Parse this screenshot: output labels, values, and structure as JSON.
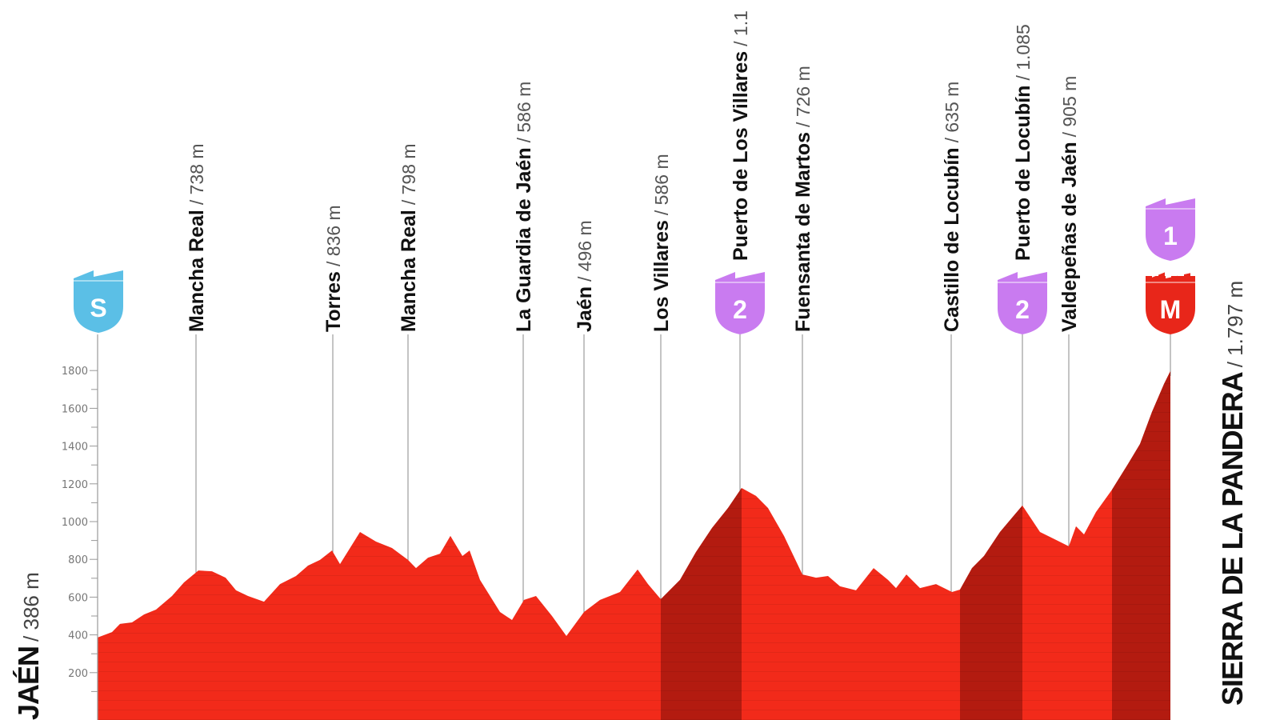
{
  "chart_data": {
    "type": "area",
    "title": "",
    "xlabel": "",
    "ylabel": "",
    "ylim": [
      0,
      1900
    ],
    "yticks": [
      200,
      400,
      600,
      800,
      1000,
      1200,
      1400,
      1600,
      1800
    ],
    "grid": false,
    "colors": {
      "profile": "#f22a1a",
      "climb": "#b31b10",
      "start_badge": "#5bbfe6",
      "climb_badge": "#c97bf0",
      "finish_badge": "#e8261a"
    },
    "profile_elevations_m": [
      386,
      415,
      458,
      466,
      508,
      534,
      606,
      678,
      741,
      737,
      703,
      636,
      606,
      576,
      669,
      712,
      767,
      797,
      847,
      775,
      945,
      894,
      860,
      797,
      754,
      809,
      830,
      924,
      818,
      847,
      691,
      521,
      479,
      585,
      606,
      500,
      394,
      521,
      585,
      627,
      746,
      669,
      589,
      691,
      839,
      966,
      1072,
      1178,
      1136,
      1072,
      924,
      720,
      703,
      712,
      657,
      636,
      754,
      691,
      648,
      720,
      648,
      669,
      627,
      640,
      754,
      818,
      945,
      1085,
      945,
      903,
      869,
      975,
      932,
      1051,
      1169,
      1305,
      1411,
      1581,
      1729,
      1797
    ],
    "climb_segments": [
      {
        "from_point": 42,
        "to_point": 47
      },
      {
        "from_point": 63,
        "to_point": 67
      },
      {
        "from_point": 74,
        "to_point": 79
      }
    ],
    "start": {
      "name": "JAÉN",
      "altitude": "386 m",
      "badge": "S"
    },
    "finish": {
      "name": "SIERRA DE LA PANDERA",
      "altitude": "1.797 m",
      "badges": [
        "1",
        "M"
      ]
    },
    "waypoints": [
      {
        "name": "Mancha Real",
        "altitude": "738 m"
      },
      {
        "name": "Torres",
        "altitude": "836 m"
      },
      {
        "name": "Mancha Real",
        "altitude": "798 m"
      },
      {
        "name": "La Guardia de Jaén",
        "altitude": "586 m"
      },
      {
        "name": "Jaén",
        "altitude": "496 m"
      },
      {
        "name": "Los Villares",
        "altitude": "586 m"
      },
      {
        "name": "Puerto de Los Villares",
        "altitude": "1.1",
        "category": "2"
      },
      {
        "name": "Fuensanta de Martos",
        "altitude": "726 m"
      },
      {
        "name": "Castillo de Locubín",
        "altitude": "635 m"
      },
      {
        "name": "Puerto de Locubín",
        "altitude": "1.085",
        "category": "2"
      },
      {
        "name": "Valdepeñas de Jaén",
        "altitude": "905 m"
      }
    ]
  }
}
